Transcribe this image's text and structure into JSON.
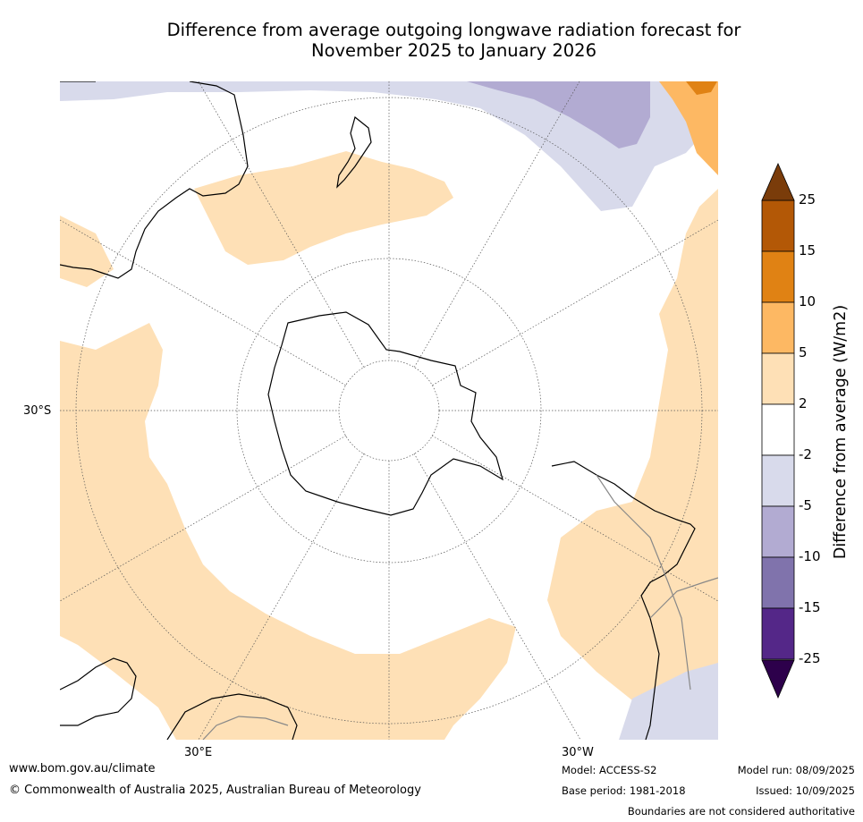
{
  "title_line1": "Difference from average outgoing longwave radiation forecast for",
  "title_line2": "November 2025 to January 2026",
  "map": {
    "projection": "south-polar-stereographic",
    "axis_labels": {
      "lat_left": "30°S",
      "lon_bottom_left": "30°E",
      "lon_bottom_right": "30°W"
    }
  },
  "colorbar": {
    "title": "Difference from average (W/m2)",
    "tick_labels": [
      "25",
      "15",
      "10",
      "5",
      "2",
      "-2",
      "-5",
      "-10",
      "-15",
      "-25"
    ],
    "colors": [
      "#7a3c0a",
      "#b35806",
      "#e08214",
      "#fdb863",
      "#fee0b6",
      "#ffffff",
      "#d8daeb",
      "#b2abd2",
      "#8073ac",
      "#542788",
      "#2d004b"
    ]
  },
  "footer": {
    "website": "www.bom.gov.au/climate",
    "copyright": "© Commonwealth of Australia 2025, Australian Bureau of Meteorology",
    "model": "Model: ACCESS-S2",
    "base_period": "Base period: 1981-2018",
    "model_run": "Model run: 08/09/2025",
    "issued": "Issued: 10/09/2025",
    "disclaimer": "Boundaries are not considered authoritative"
  }
}
